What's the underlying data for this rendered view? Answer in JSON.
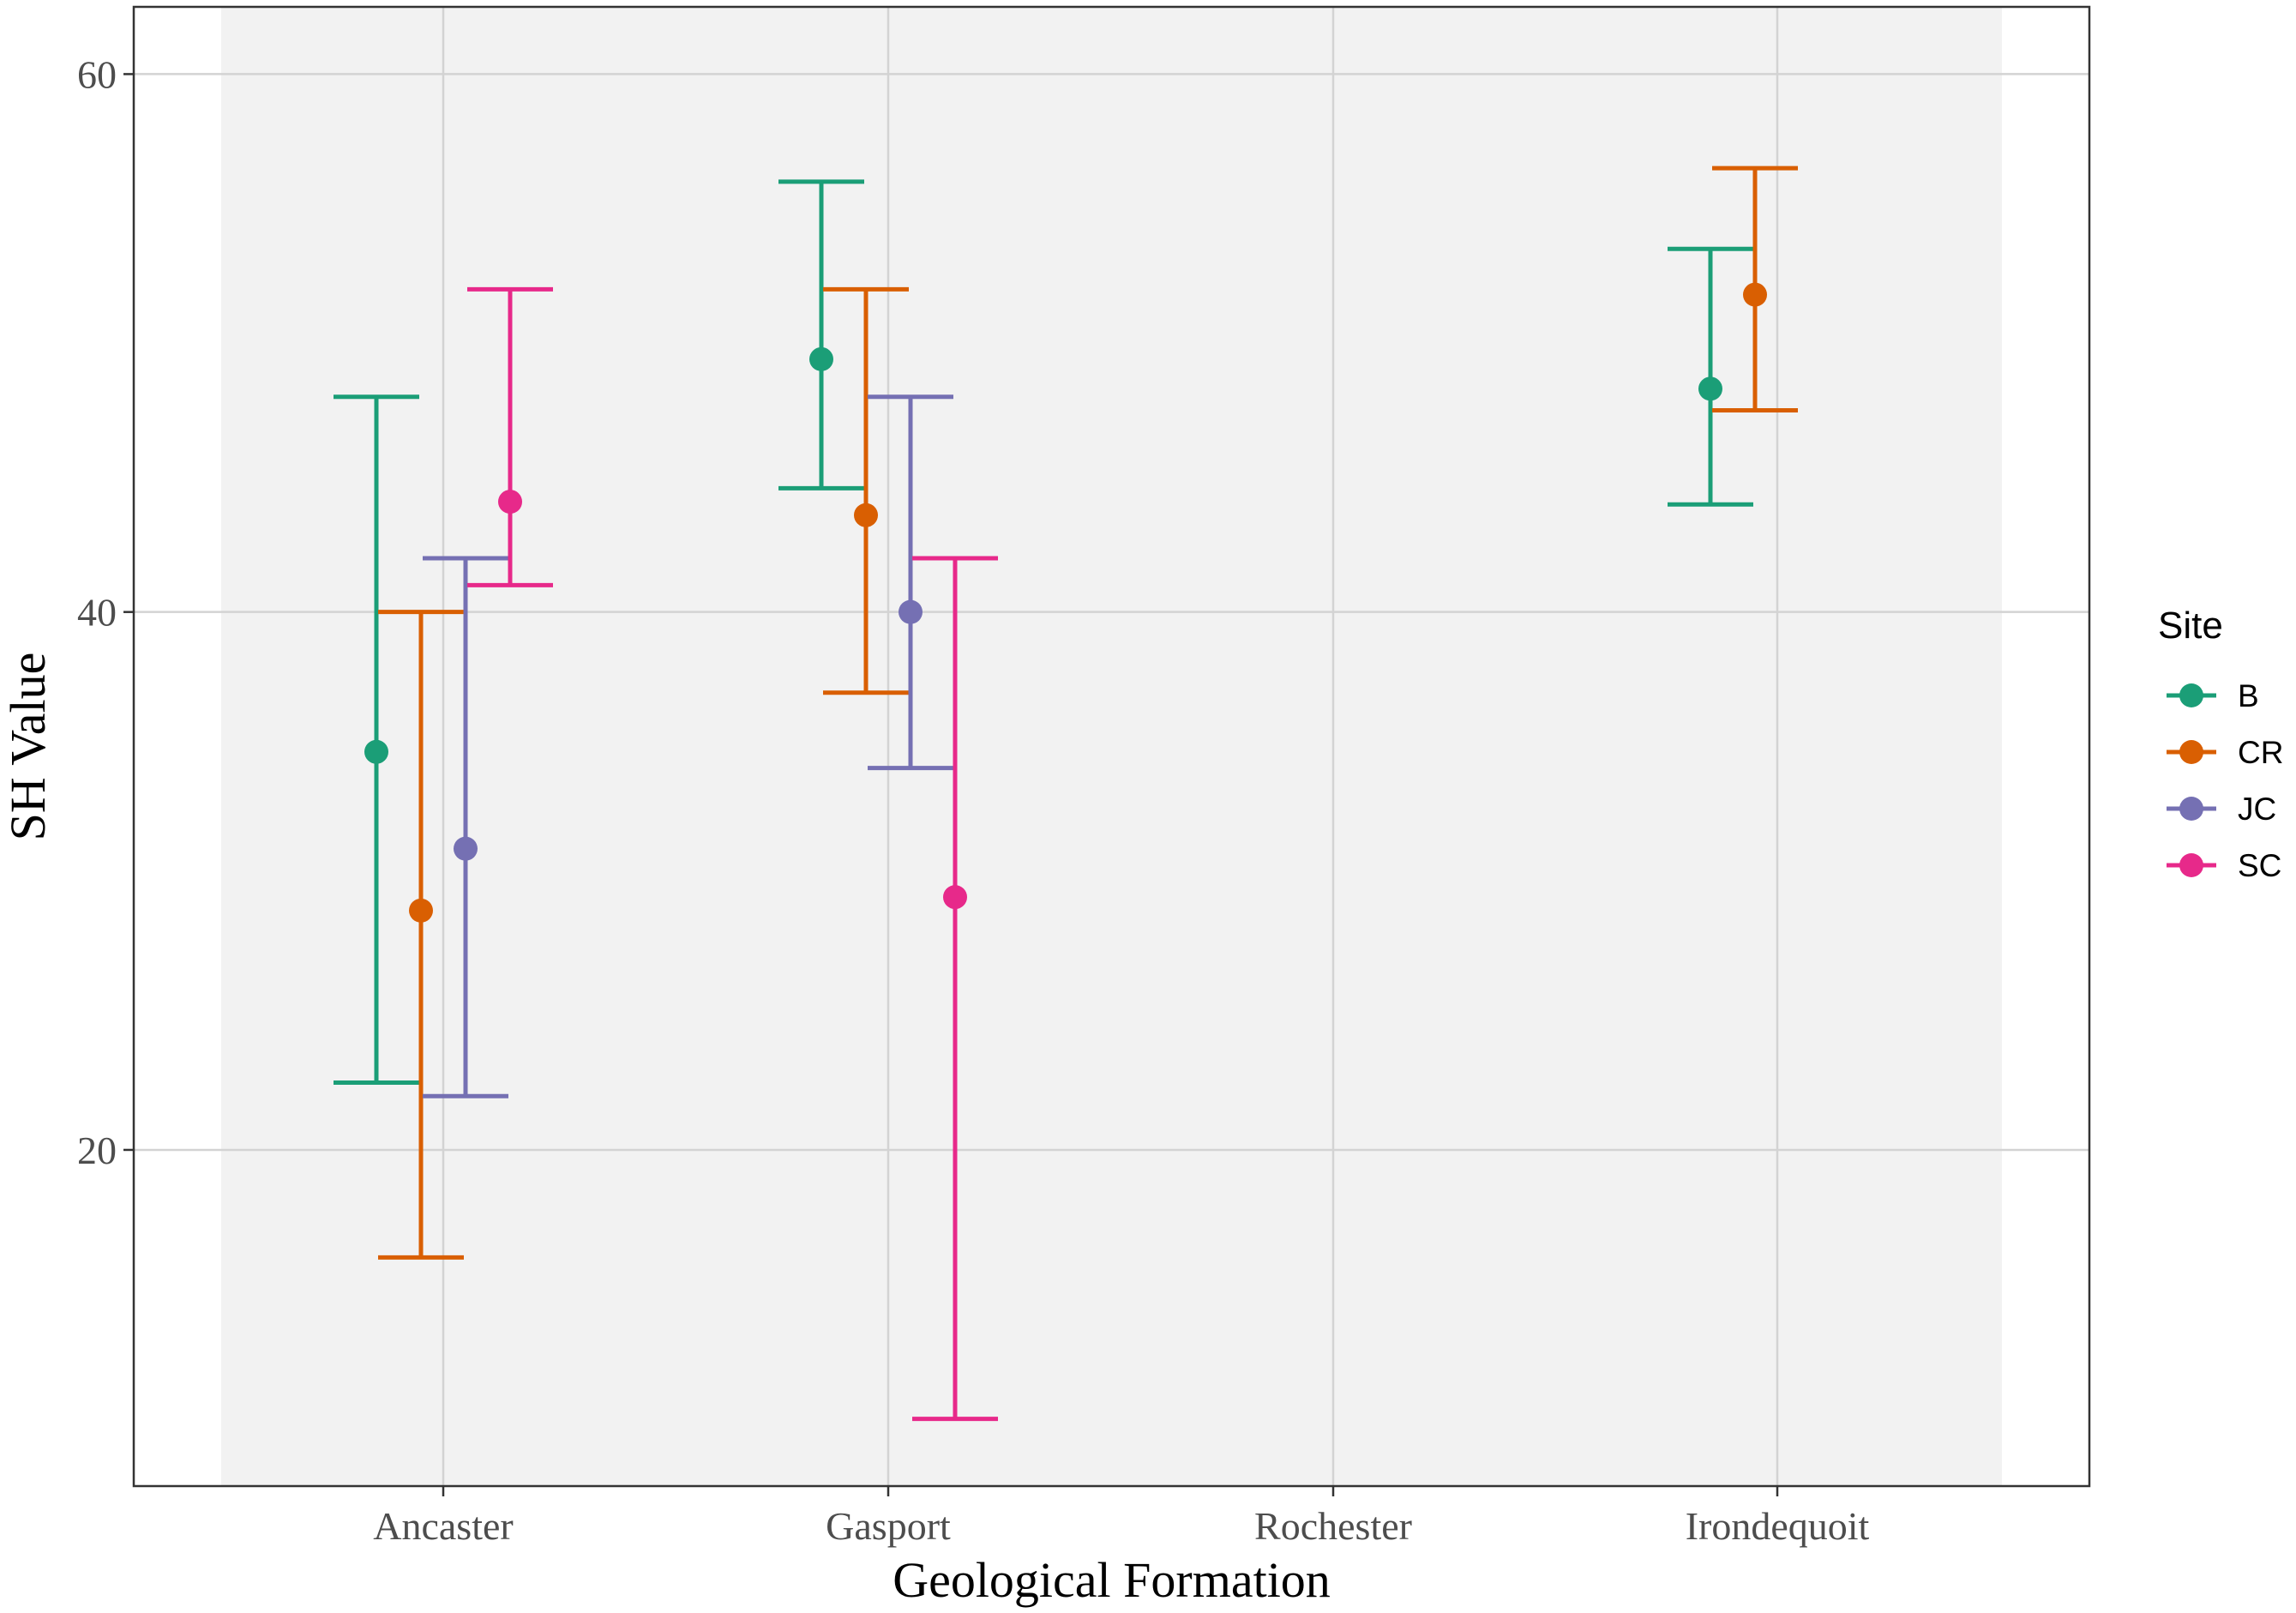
{
  "chart_data": {
    "type": "errorbar",
    "xlabel": "Geological Formation",
    "ylabel": "SH Value",
    "categories": [
      "Ancaster",
      "Gasport",
      "Rochester",
      "Irondequoit"
    ],
    "yticks": [
      20,
      40,
      60
    ],
    "ylim": [
      7.5,
      62.5
    ],
    "grid": true,
    "legend": {
      "title": "Site",
      "position": "right"
    },
    "series": [
      {
        "name": "B",
        "color": "#1b9e77",
        "points": [
          {
            "category": "Ancaster",
            "mean": 34.8,
            "low": 22.5,
            "high": 48.0
          },
          {
            "category": "Gasport",
            "mean": 49.4,
            "low": 44.6,
            "high": 56.0
          },
          {
            "category": "Irondequoit",
            "mean": 48.3,
            "low": 44.0,
            "high": 53.5
          }
        ]
      },
      {
        "name": "CR",
        "color": "#d95f02",
        "points": [
          {
            "category": "Ancaster",
            "mean": 28.9,
            "low": 16.0,
            "high": 40.0
          },
          {
            "category": "Gasport",
            "mean": 43.6,
            "low": 37.0,
            "high": 52.0
          },
          {
            "category": "Irondequoit",
            "mean": 51.8,
            "low": 47.5,
            "high": 56.5
          }
        ]
      },
      {
        "name": "JC",
        "color": "#7570b3",
        "points": [
          {
            "category": "Ancaster",
            "mean": 31.2,
            "low": 22.0,
            "high": 42.0
          },
          {
            "category": "Gasport",
            "mean": 40.0,
            "low": 34.2,
            "high": 48.0
          }
        ]
      },
      {
        "name": "SC",
        "color": "#e7298a",
        "points": [
          {
            "category": "Ancaster",
            "mean": 44.1,
            "low": 41.0,
            "high": 52.0
          },
          {
            "category": "Gasport",
            "mean": 29.4,
            "low": 10.0,
            "high": 42.0
          }
        ]
      }
    ]
  }
}
